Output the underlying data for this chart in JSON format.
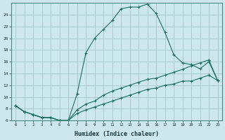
{
  "xlabel": "Humidex (Indice chaleur)",
  "background_color": "#cce8ee",
  "grid_color": "#aaccd4",
  "line_color": "#1a7060",
  "xlim": [
    -0.5,
    23.5
  ],
  "ylim": [
    6,
    26
  ],
  "yticks": [
    6,
    8,
    10,
    12,
    14,
    16,
    18,
    20,
    22,
    24
  ],
  "xticks": [
    0,
    1,
    2,
    3,
    4,
    5,
    6,
    7,
    8,
    9,
    10,
    11,
    12,
    13,
    14,
    15,
    16,
    17,
    18,
    19,
    20,
    21,
    22,
    23
  ],
  "line1_x": [
    0,
    1,
    2,
    3,
    4,
    5,
    6,
    7,
    8,
    9,
    10,
    11,
    12,
    13,
    14,
    15,
    16,
    17,
    18,
    19,
    20,
    21,
    22,
    23
  ],
  "line1_y": [
    8.5,
    7.5,
    7.0,
    6.5,
    6.5,
    6.0,
    6.0,
    10.5,
    17.5,
    20.0,
    21.5,
    23.0,
    25.0,
    25.3,
    25.3,
    25.8,
    24.2,
    21.0,
    17.2,
    15.8,
    15.5,
    14.8,
    16.0,
    12.8
  ],
  "line2_x": [
    0,
    1,
    2,
    3,
    4,
    5,
    6,
    7,
    8,
    9,
    10,
    11,
    12,
    13,
    14,
    15,
    16,
    17,
    18,
    19,
    20,
    21,
    22,
    23
  ],
  "line2_y": [
    8.5,
    7.5,
    7.0,
    6.5,
    6.5,
    6.0,
    6.0,
    7.8,
    8.8,
    9.3,
    10.3,
    11.0,
    11.5,
    12.0,
    12.5,
    13.0,
    13.2,
    13.7,
    14.2,
    14.7,
    15.3,
    15.8,
    16.3,
    12.8
  ],
  "line3_x": [
    0,
    1,
    2,
    3,
    4,
    5,
    6,
    7,
    8,
    9,
    10,
    11,
    12,
    13,
    14,
    15,
    16,
    17,
    18,
    19,
    20,
    21,
    22,
    23
  ],
  "line3_y": [
    8.5,
    7.5,
    7.0,
    6.5,
    6.5,
    6.0,
    6.0,
    7.2,
    7.8,
    8.3,
    8.8,
    9.3,
    9.8,
    10.3,
    10.8,
    11.3,
    11.5,
    12.0,
    12.2,
    12.7,
    12.7,
    13.2,
    13.7,
    12.8
  ]
}
